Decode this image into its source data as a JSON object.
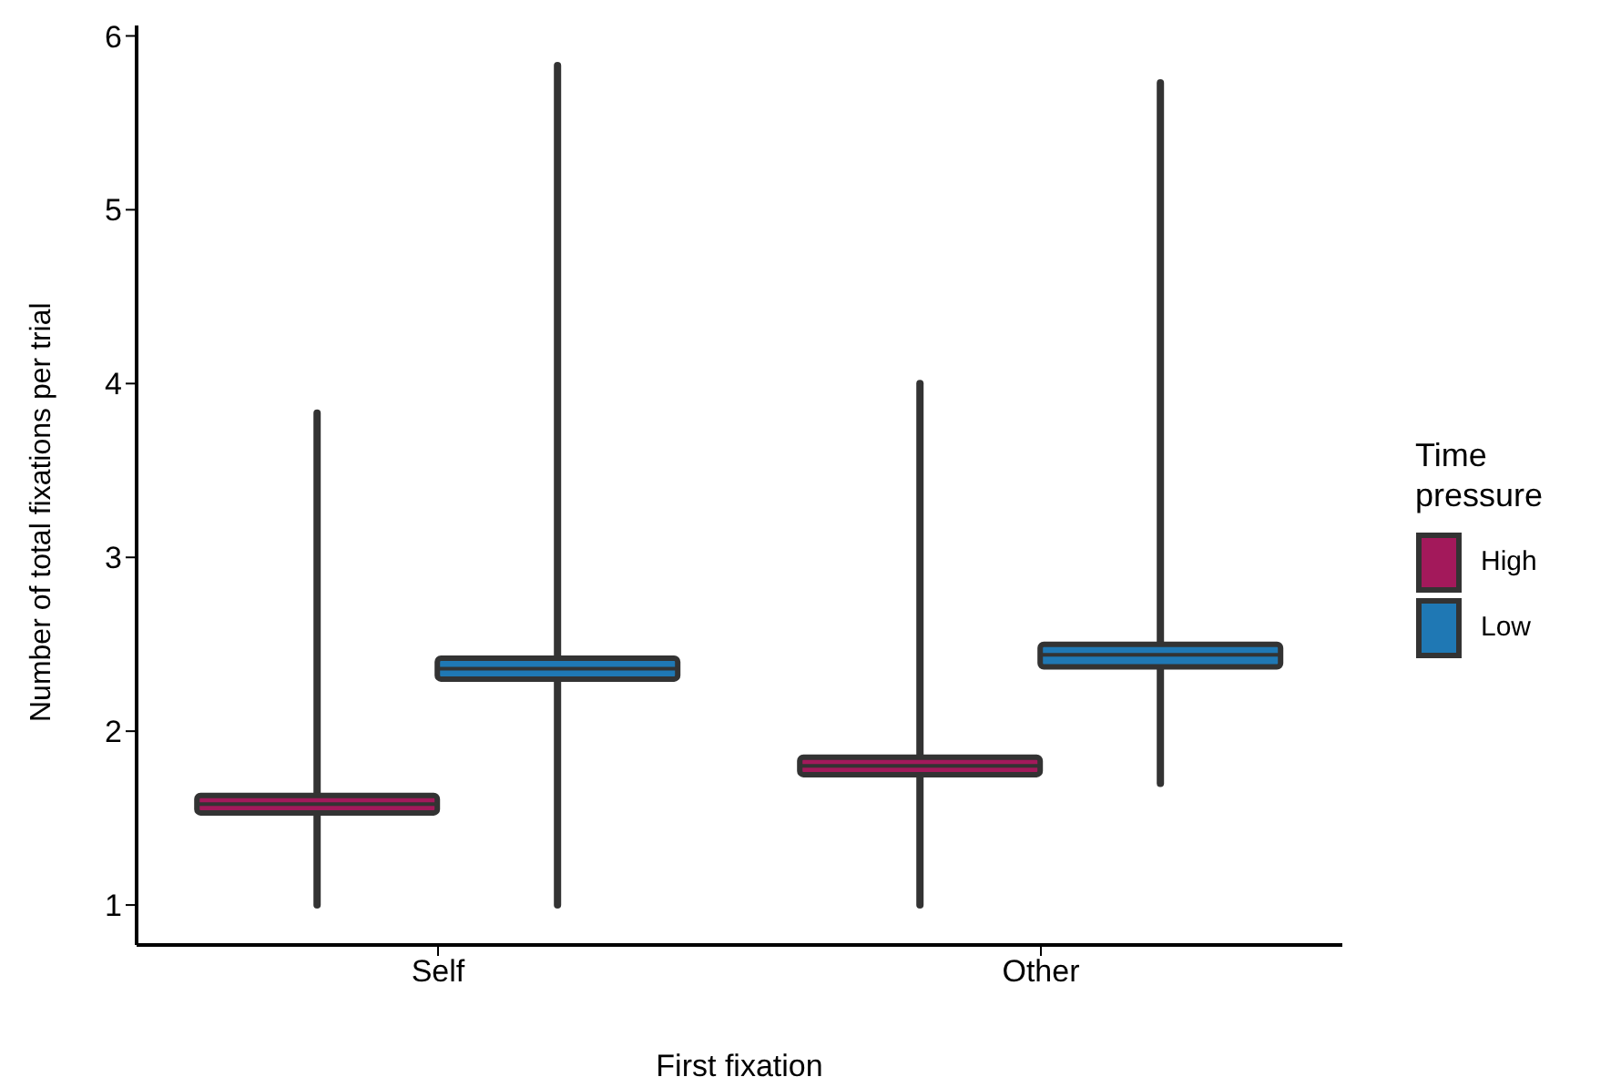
{
  "chart_data": {
    "type": "box",
    "xlabel": "First fixation",
    "ylabel": "Number of total fixations per trial",
    "legend_title": "Time pressure",
    "legend": "right",
    "grid": false,
    "categories": [
      "Self",
      "Other"
    ],
    "ylim": [
      0.77,
      6.06
    ],
    "yticks": [
      1,
      2,
      3,
      4,
      5,
      6
    ],
    "series": [
      {
        "name": "High",
        "color": "#a3195b",
        "boxes": [
          {
            "low": 1.0,
            "q1": 1.53,
            "median": 1.58,
            "q3": 1.63,
            "high": 3.83
          },
          {
            "low": 1.0,
            "q1": 1.75,
            "median": 1.8,
            "q3": 1.85,
            "high": 4.0
          }
        ]
      },
      {
        "name": "Low",
        "color": "#1f78b4",
        "boxes": [
          {
            "low": 1.0,
            "q1": 2.3,
            "median": 2.36,
            "q3": 2.42,
            "high": 5.83
          },
          {
            "low": 1.7,
            "q1": 2.37,
            "median": 2.44,
            "q3": 2.5,
            "high": 5.73
          }
        ]
      }
    ]
  }
}
